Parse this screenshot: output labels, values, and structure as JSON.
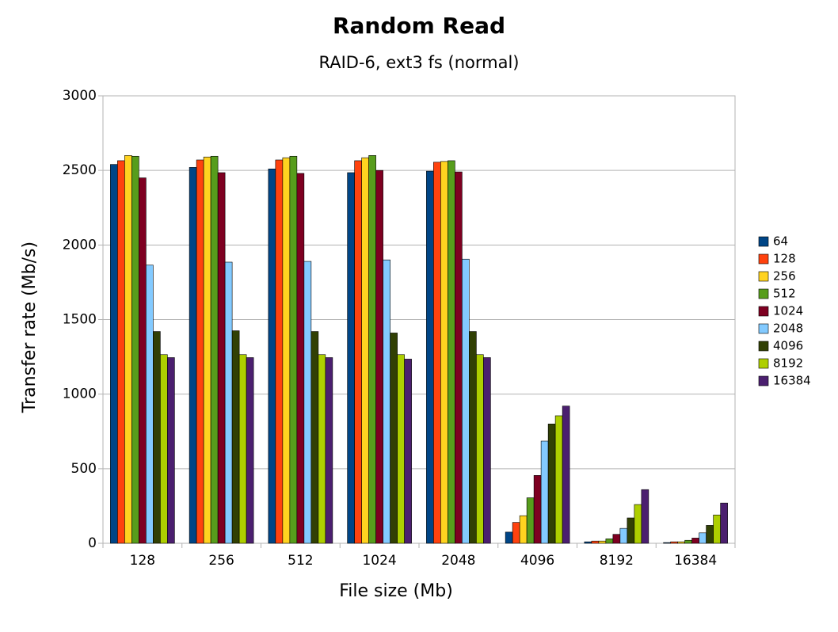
{
  "chart_data": {
    "type": "bar",
    "title": "Random Read",
    "subtitle": "RAID-6, ext3 fs (normal)",
    "x_label": "File size (Mb)",
    "y_label": "Transfer rate (Mb/s)",
    "categories": [
      "128",
      "256",
      "512",
      "1024",
      "2048",
      "4096",
      "8192",
      "16384"
    ],
    "ylim": [
      0,
      3000
    ],
    "yticks": [
      0,
      500,
      1000,
      1500,
      2000,
      2500,
      3000
    ],
    "grid": true,
    "legend": "right",
    "series": [
      {
        "name": "64",
        "color": "#004586",
        "values": [
          2540,
          2520,
          2510,
          2485,
          2495,
          75,
          10,
          5
        ]
      },
      {
        "name": "128",
        "color": "#ff420e",
        "values": [
          2565,
          2570,
          2570,
          2565,
          2555,
          140,
          15,
          10
        ]
      },
      {
        "name": "256",
        "color": "#ffd320",
        "values": [
          2600,
          2590,
          2585,
          2585,
          2560,
          185,
          15,
          10
        ]
      },
      {
        "name": "512",
        "color": "#579d1c",
        "values": [
          2595,
          2595,
          2595,
          2600,
          2565,
          305,
          30,
          20
        ]
      },
      {
        "name": "1024",
        "color": "#7e0021",
        "values": [
          2450,
          2485,
          2480,
          2500,
          2490,
          455,
          60,
          35
        ]
      },
      {
        "name": "2048",
        "color": "#83caff",
        "values": [
          1865,
          1885,
          1890,
          1900,
          1905,
          685,
          100,
          70
        ]
      },
      {
        "name": "4096",
        "color": "#314004",
        "values": [
          1420,
          1425,
          1420,
          1410,
          1420,
          800,
          170,
          120
        ]
      },
      {
        "name": "8192",
        "color": "#aecf00",
        "values": [
          1265,
          1265,
          1265,
          1265,
          1265,
          855,
          260,
          190
        ]
      },
      {
        "name": "16384",
        "color": "#4b1f6f",
        "values": [
          1245,
          1245,
          1245,
          1235,
          1245,
          920,
          360,
          270
        ]
      }
    ]
  }
}
